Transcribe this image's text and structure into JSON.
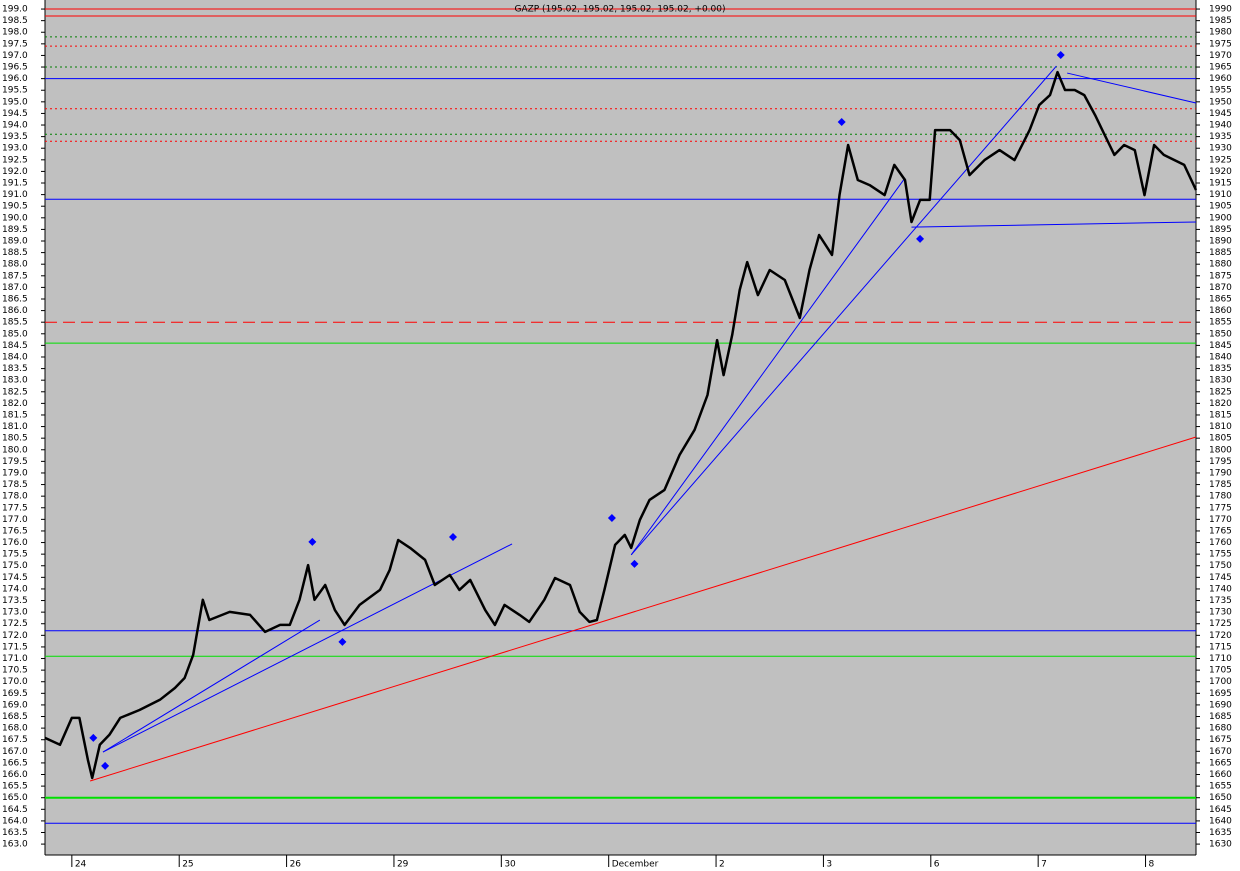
{
  "chart_data": {
    "type": "line",
    "title": "GAZP (195.02, 195.02, 195.02, 195.02, +0.00)",
    "xlim": [
      -0.25,
      10.47
    ],
    "ylim": [
      162.53,
      199.39
    ],
    "y2lim": [
      162.53,
      199.39
    ],
    "xticks": [
      {
        "value": 0,
        "label": "24"
      },
      {
        "value": 1,
        "label": "25"
      },
      {
        "value": 2,
        "label": "26"
      },
      {
        "value": 3,
        "label": "29"
      },
      {
        "value": 4,
        "label": "30"
      },
      {
        "value": 5,
        "label": "December"
      },
      {
        "value": 6,
        "label": "2"
      },
      {
        "value": 7,
        "label": "3"
      },
      {
        "value": 8,
        "label": "6"
      },
      {
        "value": 9,
        "label": "7"
      },
      {
        "value": 10,
        "label": "8"
      }
    ],
    "yticks": [
      {
        "value": 163,
        "label": "163.0"
      },
      163.5,
      {
        "value": 164,
        "label": "164.0"
      },
      164.5,
      {
        "value": 165,
        "label": "165.0"
      },
      165.5,
      {
        "value": 166,
        "label": "166.0"
      },
      166.5,
      {
        "value": 167,
        "label": "167.0"
      },
      167.5,
      {
        "value": 168,
        "label": "168.0"
      },
      168.5,
      {
        "value": 169,
        "label": "169.0"
      },
      169.5,
      {
        "value": 170,
        "label": "170.0"
      },
      170.5,
      {
        "value": 171,
        "label": "171.0"
      },
      171.5,
      {
        "value": 172,
        "label": "172.0"
      },
      172.5,
      {
        "value": 173,
        "label": "173.0"
      },
      173.5,
      {
        "value": 174,
        "label": "174.0"
      },
      174.5,
      {
        "value": 175,
        "label": "175.0"
      },
      175.5,
      {
        "value": 176,
        "label": "176.0"
      },
      176.5,
      {
        "value": 177,
        "label": "177.0"
      },
      177.5,
      {
        "value": 178,
        "label": "178.0"
      },
      178.5,
      {
        "value": 179,
        "label": "179.0"
      },
      179.5,
      {
        "value": 180,
        "label": "180.0"
      },
      180.5,
      {
        "value": 181,
        "label": "181.0"
      },
      181.5,
      {
        "value": 182,
        "label": "182.0"
      },
      182.5,
      {
        "value": 183,
        "label": "183.0"
      },
      183.5,
      {
        "value": 184,
        "label": "184.0"
      },
      184.5,
      {
        "value": 185,
        "label": "185.0"
      },
      185.5,
      {
        "value": 186,
        "label": "186.0"
      },
      186.5,
      {
        "value": 187,
        "label": "187.0"
      },
      187.5,
      {
        "value": 188,
        "label": "188.0"
      },
      188.5,
      {
        "value": 189,
        "label": "189.0"
      },
      189.5,
      {
        "value": 190,
        "label": "190.0"
      },
      190.5,
      {
        "value": 191,
        "label": "191.0"
      },
      191.5,
      {
        "value": 192,
        "label": "192.0"
      },
      192.5,
      {
        "value": 193,
        "label": "193.0"
      },
      193.5,
      {
        "value": 194,
        "label": "194.0"
      },
      194.5,
      {
        "value": 195,
        "label": "195.0"
      },
      195.5,
      {
        "value": 196,
        "label": "196.0"
      },
      196.5,
      {
        "value": 197,
        "label": "197.0"
      },
      197.5,
      {
        "value": 198,
        "label": "198.0"
      },
      198.5,
      {
        "value": 199,
        "label": "199.0"
      }
    ],
    "y2ticks": [
      {
        "value": 163,
        "label": "1630"
      },
      {
        "value": 163.5,
        "label": "1635"
      },
      {
        "value": 164,
        "label": "1640"
      },
      {
        "value": 164.5,
        "label": "1645"
      },
      {
        "value": 165,
        "label": "1650"
      },
      {
        "value": 165.5,
        "label": "1655"
      },
      {
        "value": 166,
        "label": "1660"
      },
      {
        "value": 166.5,
        "label": "1665"
      },
      {
        "value": 167,
        "label": "1670"
      },
      {
        "value": 167.5,
        "label": "1675"
      },
      {
        "value": 168,
        "label": "1680"
      },
      {
        "value": 168.5,
        "label": "1685"
      },
      {
        "value": 169,
        "label": "1690"
      },
      {
        "value": 169.5,
        "label": "1695"
      },
      {
        "value": 170,
        "label": "1700"
      },
      {
        "value": 170.5,
        "label": "1705"
      },
      {
        "value": 171,
        "label": "1710"
      },
      {
        "value": 171.5,
        "label": "1715"
      },
      {
        "value": 172,
        "label": "1720"
      },
      {
        "value": 172.5,
        "label": "1725"
      },
      {
        "value": 173,
        "label": "1730"
      },
      {
        "value": 173.5,
        "label": "1735"
      },
      {
        "value": 174,
        "label": "1740"
      },
      {
        "value": 174.5,
        "label": "1745"
      },
      {
        "value": 175,
        "label": "1750"
      },
      {
        "value": 175.5,
        "label": "1755"
      },
      {
        "value": 176,
        "label": "1760"
      },
      {
        "value": 176.5,
        "label": "1765"
      },
      {
        "value": 177,
        "label": "1770"
      },
      {
        "value": 177.5,
        "label": "1775"
      },
      {
        "value": 178,
        "label": "1780"
      },
      {
        "value": 178.5,
        "label": "1785"
      },
      {
        "value": 179,
        "label": "1790"
      },
      {
        "value": 179.5,
        "label": "1795"
      },
      {
        "value": 180,
        "label": "1800"
      },
      {
        "value": 180.5,
        "label": "1805"
      },
      {
        "value": 181,
        "label": "1810"
      },
      {
        "value": 181.5,
        "label": "1815"
      },
      {
        "value": 182,
        "label": "1820"
      },
      {
        "value": 182.5,
        "label": "1825"
      },
      {
        "value": 183,
        "label": "1830"
      },
      {
        "value": 183.5,
        "label": "1835"
      },
      {
        "value": 184,
        "label": "1840"
      },
      {
        "value": 184.5,
        "label": "1845"
      },
      {
        "value": 185,
        "label": "1850"
      },
      {
        "value": 185.5,
        "label": "1855"
      },
      {
        "value": 186,
        "label": "1860"
      },
      {
        "value": 186.5,
        "label": "1865"
      },
      {
        "value": 187,
        "label": "1870"
      },
      {
        "value": 187.5,
        "label": "1875"
      },
      {
        "value": 188,
        "label": "1880"
      },
      {
        "value": 188.5,
        "label": "1885"
      },
      {
        "value": 189,
        "label": "1890"
      },
      {
        "value": 189.5,
        "label": "1895"
      },
      {
        "value": 190,
        "label": "1900"
      },
      {
        "value": 190.5,
        "label": "1905"
      },
      {
        "value": 191,
        "label": "1910"
      },
      {
        "value": 191.5,
        "label": "1915"
      },
      {
        "value": 192,
        "label": "1920"
      },
      {
        "value": 192.5,
        "label": "1925"
      },
      {
        "value": 193,
        "label": "1930"
      },
      {
        "value": 193.5,
        "label": "1935"
      },
      {
        "value": 194,
        "label": "1940"
      },
      {
        "value": 194.5,
        "label": "1945"
      },
      {
        "value": 195,
        "label": "1950"
      },
      {
        "value": 195.5,
        "label": "1955"
      },
      {
        "value": 196,
        "label": "1960"
      },
      {
        "value": 196.5,
        "label": "1965"
      },
      {
        "value": 197,
        "label": "1970"
      },
      {
        "value": 197.5,
        "label": "1975"
      },
      {
        "value": 198,
        "label": "1980"
      },
      {
        "value": 198.5,
        "label": "1985"
      },
      {
        "value": 199,
        "label": "1990"
      }
    ],
    "background": "#c0c0c0",
    "levels": [
      {
        "value": 199.0,
        "color": "#ff0000",
        "style": "solid"
      },
      {
        "value": 198.7,
        "color": "#ff0000",
        "style": "solid"
      },
      {
        "value": 197.8,
        "color": "#008000",
        "style": "dotted"
      },
      {
        "value": 197.4,
        "color": "#ff0000",
        "style": "dotted"
      },
      {
        "value": 196.5,
        "color": "#008000",
        "style": "dotted"
      },
      {
        "value": 196.0,
        "color": "#0000ff",
        "style": "solid"
      },
      {
        "value": 194.7,
        "color": "#ff0000",
        "style": "dotted"
      },
      {
        "value": 193.6,
        "color": "#008000",
        "style": "dotted"
      },
      {
        "value": 193.3,
        "color": "#ff0000",
        "style": "dotted"
      },
      {
        "value": 190.8,
        "color": "#0000ff",
        "style": "solid"
      },
      {
        "value": 185.5,
        "color": "#ff0000",
        "style": "dashed"
      },
      {
        "value": 184.6,
        "color": "#00e000",
        "style": "solid"
      },
      {
        "value": 172.2,
        "color": "#0000ff",
        "style": "solid"
      },
      {
        "value": 171.1,
        "color": "#00e000",
        "style": "solid"
      },
      {
        "value": 165.0,
        "color": "#00e000",
        "style": "thick"
      },
      {
        "value": 163.9,
        "color": "#0000ff",
        "style": "solid"
      }
    ],
    "trendlines": [
      {
        "color": "#ff0000",
        "x": [
          0.17,
          10.47
        ],
        "values": [
          165.72,
          180.55
        ]
      },
      {
        "color": "#0000ff",
        "x": [
          0.29,
          2.31
        ],
        "values": [
          166.97,
          172.66
        ]
      },
      {
        "color": "#0000ff",
        "x": [
          0.29,
          4.1
        ],
        "values": [
          166.97,
          175.94
        ]
      },
      {
        "color": "#0000ff",
        "x": [
          5.21,
          7.76
        ],
        "values": [
          175.47,
          191.72
        ]
      },
      {
        "color": "#0000ff",
        "x": [
          5.21,
          9.17
        ],
        "values": [
          175.47,
          196.54
        ]
      },
      {
        "color": "#0000ff",
        "x": [
          7.82,
          10.47
        ],
        "values": [
          189.6,
          189.82
        ]
      },
      {
        "color": "#0000ff",
        "x": [
          9.27,
          10.47
        ],
        "values": [
          196.24,
          194.95
        ]
      }
    ],
    "price": {
      "color": "#000000",
      "x": [
        -0.25,
        -0.11,
        0,
        0.07,
        0.15,
        0.19,
        0.26,
        0.35,
        0.45,
        0.63,
        0.82,
        0.96,
        1.05,
        1.13,
        1.22,
        1.28,
        1.47,
        1.66,
        1.8,
        1.94,
        2.03,
        2.12,
        2.2,
        2.26,
        2.36,
        2.45,
        2.54,
        2.68,
        2.87,
        2.96,
        3.04,
        3.15,
        3.29,
        3.38,
        3.52,
        3.61,
        3.71,
        3.85,
        3.94,
        4.03,
        4.17,
        4.26,
        4.4,
        4.5,
        4.64,
        4.73,
        4.82,
        4.89,
        4.96,
        5.06,
        5.15,
        5.21,
        5.29,
        5.38,
        5.52,
        5.66,
        5.8,
        5.92,
        6.01,
        6.07,
        6.15,
        6.22,
        6.29,
        6.39,
        6.5,
        6.64,
        6.78,
        6.87,
        6.96,
        7.08,
        7.15,
        7.23,
        7.32,
        7.43,
        7.57,
        7.66,
        7.76,
        7.82,
        7.9,
        7.99,
        8.04,
        8.18,
        8.27,
        8.36,
        8.5,
        8.64,
        8.78,
        8.92,
        9.01,
        9.11,
        9.18,
        9.25,
        9.34,
        9.43,
        9.53,
        9.62,
        9.71,
        9.8,
        9.9,
        9.99,
        10.08,
        10.17,
        10.27,
        10.36,
        10.47
      ],
      "values": [
        167.58,
        167.28,
        168.44,
        168.44,
        166.63,
        165.85,
        167.28,
        167.71,
        168.44,
        168.78,
        169.22,
        169.73,
        170.16,
        171.16,
        173.53,
        172.66,
        173.01,
        172.88,
        172.15,
        172.45,
        172.45,
        173.53,
        175.03,
        173.53,
        174.17,
        173.09,
        172.45,
        173.31,
        173.96,
        174.82,
        176.11,
        175.77,
        175.25,
        174.17,
        174.6,
        173.96,
        174.39,
        173.09,
        172.45,
        173.31,
        172.88,
        172.58,
        173.53,
        174.47,
        174.17,
        173.01,
        172.58,
        172.66,
        173.96,
        175.9,
        176.33,
        175.77,
        176.97,
        177.84,
        178.27,
        179.78,
        180.86,
        182.36,
        184.73,
        183.22,
        184.95,
        186.89,
        188.09,
        186.67,
        187.75,
        187.32,
        185.68,
        187.75,
        189.26,
        188.4,
        190.98,
        193.14,
        191.63,
        191.41,
        190.98,
        192.28,
        191.63,
        189.82,
        190.77,
        190.77,
        193.78,
        193.78,
        193.35,
        191.84,
        192.49,
        192.92,
        192.49,
        193.78,
        194.86,
        195.29,
        196.28,
        195.51,
        195.51,
        195.29,
        194.43,
        193.57,
        192.71,
        193.14,
        192.92,
        190.98,
        193.14,
        192.71,
        192.49,
        192.28,
        191.2
      ]
    },
    "markers": {
      "color": "#0000ff",
      "x": [
        0.2,
        0.31,
        2.24,
        2.52,
        3.55,
        5.03,
        5.24,
        7.17,
        7.9,
        9.21
      ],
      "values": [
        167.58,
        166.37,
        176.03,
        171.72,
        176.24,
        177.06,
        175.08,
        194.13,
        189.09,
        197.02
      ]
    }
  }
}
